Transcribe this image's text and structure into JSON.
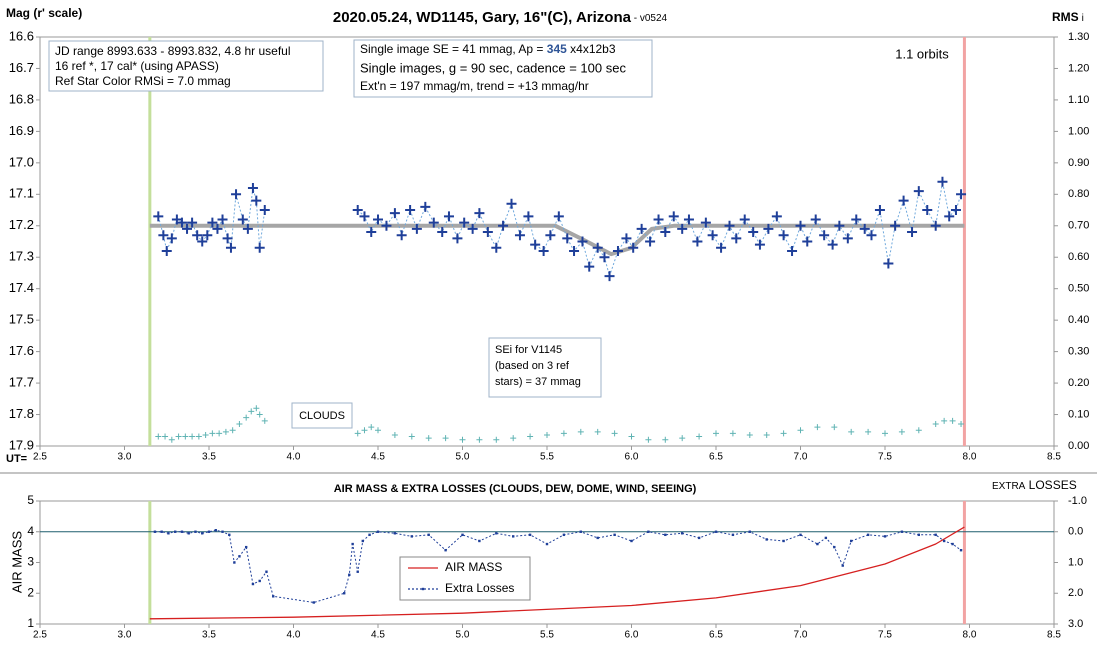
{
  "chart_data": [
    {
      "type": "scatter",
      "title": "2020.05.24, WD1145, Gary, 16\"(C), Arizona",
      "title_suffix": " - v0524",
      "y_label": "Mag (r' scale)",
      "y2_label": "RMS",
      "y2_label_suffix": "i",
      "x_label": "UT=",
      "xlim": [
        2.5,
        8.5
      ],
      "xticks": [
        2.5,
        {
          "value": 3,
          "label": "3.0"
        },
        3.5,
        {
          "value": 4,
          "label": "4.0"
        },
        4.5,
        {
          "value": 5,
          "label": "5.0"
        },
        5.5,
        {
          "value": 6,
          "label": "6.0"
        },
        6.5,
        {
          "value": 7,
          "label": "7.0"
        },
        7.5,
        {
          "value": 8,
          "label": "8.0"
        },
        8.5
      ],
      "ylim": [
        17.9,
        16.6
      ],
      "yticks": [
        16.6,
        16.7,
        16.8,
        16.9,
        {
          "value": 17,
          "label": "17.0"
        },
        17.1,
        17.2,
        17.3,
        17.4,
        17.5,
        17.6,
        17.7,
        17.8,
        17.9
      ],
      "y2lim": [
        0,
        1.3
      ],
      "y2ticks": [
        {
          "value": 0,
          "label": "0.00"
        },
        {
          "value": 0.1,
          "label": "0.10"
        },
        {
          "value": 0.2,
          "label": "0.20"
        },
        {
          "value": 0.3,
          "label": "0.30"
        },
        {
          "value": 0.4,
          "label": "0.40"
        },
        {
          "value": 0.5,
          "label": "0.50"
        },
        {
          "value": 0.6,
          "label": "0.60"
        },
        {
          "value": 0.7,
          "label": "0.70"
        },
        {
          "value": 0.8,
          "label": "0.80"
        },
        {
          "value": 0.9,
          "label": "0.90"
        },
        {
          "value": 1,
          "label": "1.00"
        },
        {
          "value": 1.1,
          "label": "1.10"
        },
        {
          "value": 1.2,
          "label": "1.20"
        },
        {
          "value": 1.3,
          "label": "1.30"
        }
      ],
      "vlines": [
        {
          "value": 3.15,
          "color": "#c4df9b"
        },
        {
          "value": 7.97,
          "color": "#f2a3a3"
        }
      ],
      "annotations": {
        "info": [
          "JD range 8993.633 - 8993.832, 4.8 hr useful",
          "16 ref *, 17 cal* (using APASS)",
          "Ref Star Color RMSi = 7.0 mmag"
        ],
        "single": [
          "Single image SE = 41 mmag, Ap = ",
          "345",
          " x4x12b3"
        ],
        "cadence": "Single images, g = 90 sec, cadence = 100 sec",
        "ext": "Ext'n = 197 mmag/m, trend = +13 mmag/hr",
        "orbits": "1.1 orbits",
        "sei": [
          "SEi for V1145",
          "(based on 3 ref",
          "stars) = 37 mmag"
        ],
        "clouds": "CLOUDS"
      },
      "series": [
        {
          "color": "#a6a6a6",
          "line_style": "thick",
          "marker": "none",
          "x": [
            3.15,
            5.55,
            5.7,
            5.88,
            6.0,
            6.12,
            6.25,
            7.97
          ],
          "values": [
            17.2,
            17.2,
            17.24,
            17.29,
            17.27,
            17.21,
            17.2,
            17.2
          ]
        },
        {
          "color": "#6fa8dc",
          "line_style": "dotted",
          "marker": "plus",
          "marker_color": "#1f3f99",
          "x": [
            3.2,
            3.23,
            3.25,
            3.28,
            3.31,
            3.34,
            3.37,
            3.4,
            3.43,
            3.46,
            3.49,
            3.52,
            3.55,
            3.58,
            3.61,
            3.63,
            3.66,
            3.7,
            3.73,
            3.76,
            3.78,
            3.8,
            3.83,
            4.1,
            4.38,
            4.42,
            4.46,
            4.5,
            4.55,
            4.6,
            4.64,
            4.69,
            4.73,
            4.78,
            4.83,
            4.88,
            4.92,
            4.97,
            5.01,
            5.06,
            5.1,
            5.15,
            5.2,
            5.24,
            5.29,
            5.34,
            5.39,
            5.43,
            5.48,
            5.52,
            5.57,
            5.62,
            5.66,
            5.71,
            5.75,
            5.8,
            5.84,
            5.87,
            5.92,
            5.97,
            6.01,
            6.06,
            6.11,
            6.16,
            6.2,
            6.25,
            6.3,
            6.34,
            6.39,
            6.44,
            6.48,
            6.53,
            6.58,
            6.62,
            6.67,
            6.72,
            6.76,
            6.81,
            6.86,
            6.9,
            6.95,
            7.0,
            7.04,
            7.09,
            7.14,
            7.19,
            7.23,
            7.28,
            7.33,
            7.38,
            7.42,
            7.47,
            7.52,
            7.56,
            7.61,
            7.66,
            7.7,
            7.75,
            7.8,
            7.84,
            7.88,
            7.92,
            7.95
          ],
          "values": [
            17.17,
            17.23,
            17.28,
            17.24,
            17.18,
            17.19,
            17.21,
            17.19,
            17.23,
            17.25,
            17.23,
            17.19,
            17.21,
            17.18,
            17.24,
            17.27,
            17.1,
            17.18,
            17.21,
            17.08,
            17.12,
            17.27,
            17.15,
            null,
            17.15,
            17.17,
            17.22,
            17.18,
            17.2,
            17.16,
            17.23,
            17.15,
            17.21,
            17.14,
            17.19,
            17.22,
            17.17,
            17.24,
            17.19,
            17.21,
            17.16,
            17.22,
            17.27,
            17.2,
            17.13,
            17.23,
            17.17,
            17.26,
            17.28,
            17.23,
            17.17,
            17.24,
            17.28,
            17.25,
            17.33,
            17.27,
            17.3,
            17.36,
            17.28,
            17.24,
            17.27,
            17.21,
            17.25,
            17.18,
            17.22,
            17.17,
            17.21,
            17.18,
            17.25,
            17.19,
            17.23,
            17.27,
            17.2,
            17.24,
            17.18,
            17.22,
            17.26,
            17.21,
            17.17,
            17.23,
            17.28,
            17.2,
            17.25,
            17.18,
            17.23,
            17.26,
            17.2,
            17.24,
            17.18,
            17.21,
            17.23,
            17.15,
            17.32,
            17.2,
            17.12,
            17.22,
            17.09,
            17.15,
            17.2,
            17.06,
            17.17,
            17.15,
            17.1
          ]
        },
        {
          "color": "#5fb3b3",
          "line_style": "none",
          "marker": "small-plus",
          "axis": "y2",
          "x": [
            3.2,
            3.24,
            3.28,
            3.32,
            3.36,
            3.4,
            3.44,
            3.48,
            3.52,
            3.56,
            3.6,
            3.64,
            3.68,
            3.72,
            3.75,
            3.78,
            3.8,
            3.83,
            4.38,
            4.42,
            4.46,
            4.5,
            4.6,
            4.7,
            4.8,
            4.9,
            5.0,
            5.1,
            5.2,
            5.3,
            5.4,
            5.5,
            5.6,
            5.7,
            5.8,
            5.9,
            6.0,
            6.1,
            6.2,
            6.3,
            6.4,
            6.5,
            6.6,
            6.7,
            6.8,
            6.9,
            7.0,
            7.1,
            7.2,
            7.3,
            7.4,
            7.5,
            7.6,
            7.7,
            7.8,
            7.85,
            7.9,
            7.95
          ],
          "values": [
            0.03,
            0.03,
            0.02,
            0.03,
            0.03,
            0.03,
            0.03,
            0.035,
            0.04,
            0.04,
            0.045,
            0.05,
            0.07,
            0.09,
            0.11,
            0.12,
            0.1,
            0.08,
            0.04,
            0.05,
            0.06,
            0.05,
            0.035,
            0.03,
            0.025,
            0.025,
            0.02,
            0.02,
            0.02,
            0.025,
            0.03,
            0.035,
            0.04,
            0.045,
            0.045,
            0.04,
            0.03,
            0.02,
            0.02,
            0.025,
            0.03,
            0.04,
            0.04,
            0.035,
            0.035,
            0.04,
            0.05,
            0.06,
            0.06,
            0.045,
            0.045,
            0.04,
            0.045,
            0.05,
            0.07,
            0.08,
            0.08,
            0.07
          ]
        }
      ]
    },
    {
      "type": "line",
      "title": "AIR MASS & EXTRA LOSSES (CLOUDS, DEW, DOME, WIND, SEEING)",
      "y_label": "AIR MASS",
      "y2_label": "EXTRA",
      "y2_label_suffix": " LOSSES",
      "xlim": [
        2.5,
        8.5
      ],
      "xticks": [
        2.5,
        {
          "value": 3,
          "label": "3.0"
        },
        3.5,
        {
          "value": 4,
          "label": "4.0"
        },
        4.5,
        {
          "value": 5,
          "label": "5.0"
        },
        5.5,
        {
          "value": 6,
          "label": "6.0"
        },
        6.5,
        {
          "value": 7,
          "label": "7.0"
        },
        7.5,
        {
          "value": 8,
          "label": "8.0"
        },
        8.5
      ],
      "ylim": [
        1,
        5
      ],
      "yticks": [
        1,
        2,
        3,
        4,
        5
      ],
      "y2lim": [
        3,
        -1
      ],
      "y2ticks": [
        {
          "value": -1,
          "label": "-1.0"
        },
        {
          "value": 0,
          "label": "0.0"
        },
        {
          "value": 1,
          "label": "1.0"
        },
        {
          "value": 2,
          "label": "2.0"
        },
        {
          "value": 3,
          "label": "3.0"
        }
      ],
      "vlines": [
        {
          "value": 3.15,
          "color": "#c4df9b"
        },
        {
          "value": 7.97,
          "color": "#f2a3a3"
        }
      ],
      "hlines": [
        {
          "value": 0,
          "axis": "y2",
          "color": "#1f5f6f"
        }
      ],
      "series": [
        {
          "name": "AIR MASS",
          "color": "#d62020",
          "line_style": "solid",
          "marker": "none",
          "x": [
            3.15,
            4.0,
            5.0,
            6.0,
            6.5,
            7.0,
            7.5,
            7.8,
            7.97
          ],
          "values": [
            1.17,
            1.22,
            1.35,
            1.6,
            1.85,
            2.25,
            2.95,
            3.6,
            4.15
          ]
        },
        {
          "name": "Extra Losses",
          "color": "#1f3f99",
          "line_style": "dotted",
          "marker": "dot",
          "axis": "y2",
          "x": [
            3.18,
            3.22,
            3.26,
            3.3,
            3.34,
            3.38,
            3.42,
            3.46,
            3.5,
            3.54,
            3.58,
            3.62,
            3.65,
            3.68,
            3.72,
            3.76,
            3.8,
            3.84,
            3.88,
            4.12,
            4.3,
            4.33,
            4.35,
            4.38,
            4.41,
            4.45,
            4.5,
            4.6,
            4.7,
            4.8,
            4.9,
            5.0,
            5.1,
            5.2,
            5.3,
            5.4,
            5.5,
            5.6,
            5.7,
            5.8,
            5.9,
            6.0,
            6.1,
            6.2,
            6.3,
            6.4,
            6.5,
            6.6,
            6.7,
            6.8,
            6.9,
            7.0,
            7.1,
            7.15,
            7.2,
            7.25,
            7.3,
            7.4,
            7.5,
            7.6,
            7.7,
            7.8,
            7.85,
            7.9,
            7.95
          ],
          "values": [
            0.0,
            0.0,
            0.05,
            0.0,
            0.0,
            0.05,
            0.0,
            0.05,
            0.0,
            -0.05,
            0.0,
            0.1,
            1.0,
            0.8,
            0.5,
            1.7,
            1.6,
            1.3,
            2.1,
            2.3,
            2.0,
            1.4,
            0.4,
            1.3,
            0.3,
            0.1,
            0.0,
            0.05,
            0.15,
            0.1,
            0.6,
            0.1,
            0.3,
            0.05,
            0.15,
            0.1,
            0.4,
            0.1,
            0.0,
            0.2,
            0.1,
            0.3,
            0.0,
            0.1,
            0.05,
            0.2,
            0.0,
            0.1,
            0.0,
            0.25,
            0.3,
            0.1,
            0.4,
            0.2,
            0.5,
            1.1,
            0.3,
            0.1,
            0.15,
            0.0,
            0.1,
            0.1,
            0.3,
            0.4,
            0.6
          ]
        }
      ]
    }
  ]
}
